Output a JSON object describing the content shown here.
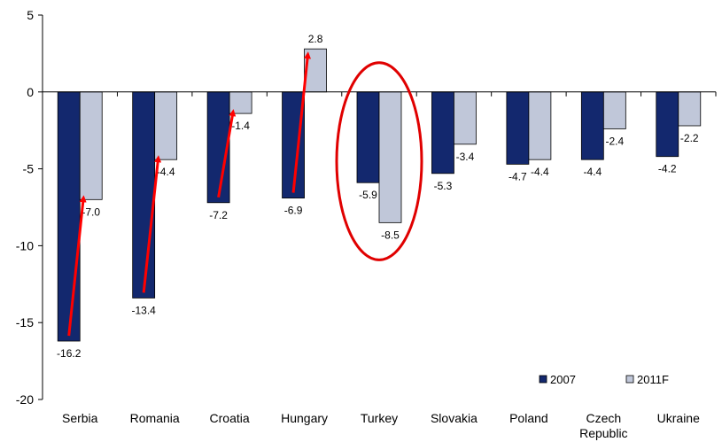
{
  "chart_data": {
    "type": "bar",
    "title": "",
    "xlabel": "",
    "ylabel": "",
    "ylim": [
      -20,
      5
    ],
    "yticks": [
      5,
      0,
      -5,
      -10,
      -15,
      -20
    ],
    "grid": false,
    "legend_position": "bottom-right",
    "categories": [
      "Serbia",
      "Romania",
      "Croatia",
      "Hungary",
      "Turkey",
      "Slovakia",
      "Poland",
      "Czech Republic",
      "Ukraine"
    ],
    "category_lines": [
      [
        "Serbia"
      ],
      [
        "Romania"
      ],
      [
        "Croatia"
      ],
      [
        "Hungary"
      ],
      [
        "Turkey"
      ],
      [
        "Slovakia"
      ],
      [
        "Poland"
      ],
      [
        "Czech",
        "Republic"
      ],
      [
        "Ukraine"
      ]
    ],
    "series": [
      {
        "name": "2007",
        "color": "#13286e",
        "values": [
          -16.2,
          -13.4,
          -7.2,
          -6.9,
          -5.9,
          -5.3,
          -4.7,
          -4.4,
          -4.2
        ]
      },
      {
        "name": "2011F",
        "color": "#c0c7d9",
        "values": [
          -7.0,
          -4.4,
          -1.4,
          2.8,
          -8.5,
          -3.4,
          -4.4,
          -2.4,
          -2.2
        ]
      }
    ],
    "value_labels": [
      [
        "-16.2",
        "-13.4",
        "-7.2",
        "-6.9",
        "-5.9",
        "-5.3",
        "-4.7",
        "-4.4",
        "-4.2"
      ],
      [
        "-7.0",
        "-4.4",
        "-1.4",
        "2.8",
        "-8.5",
        "-3.4",
        "-4.4",
        "-2.4",
        "-2.2"
      ]
    ],
    "annotations": {
      "arrow_color": "#ff0000",
      "arrow_categories": [
        "Serbia",
        "Romania",
        "Croatia",
        "Hungary"
      ],
      "circle_color": "#e00000",
      "circled_category": "Turkey"
    }
  }
}
